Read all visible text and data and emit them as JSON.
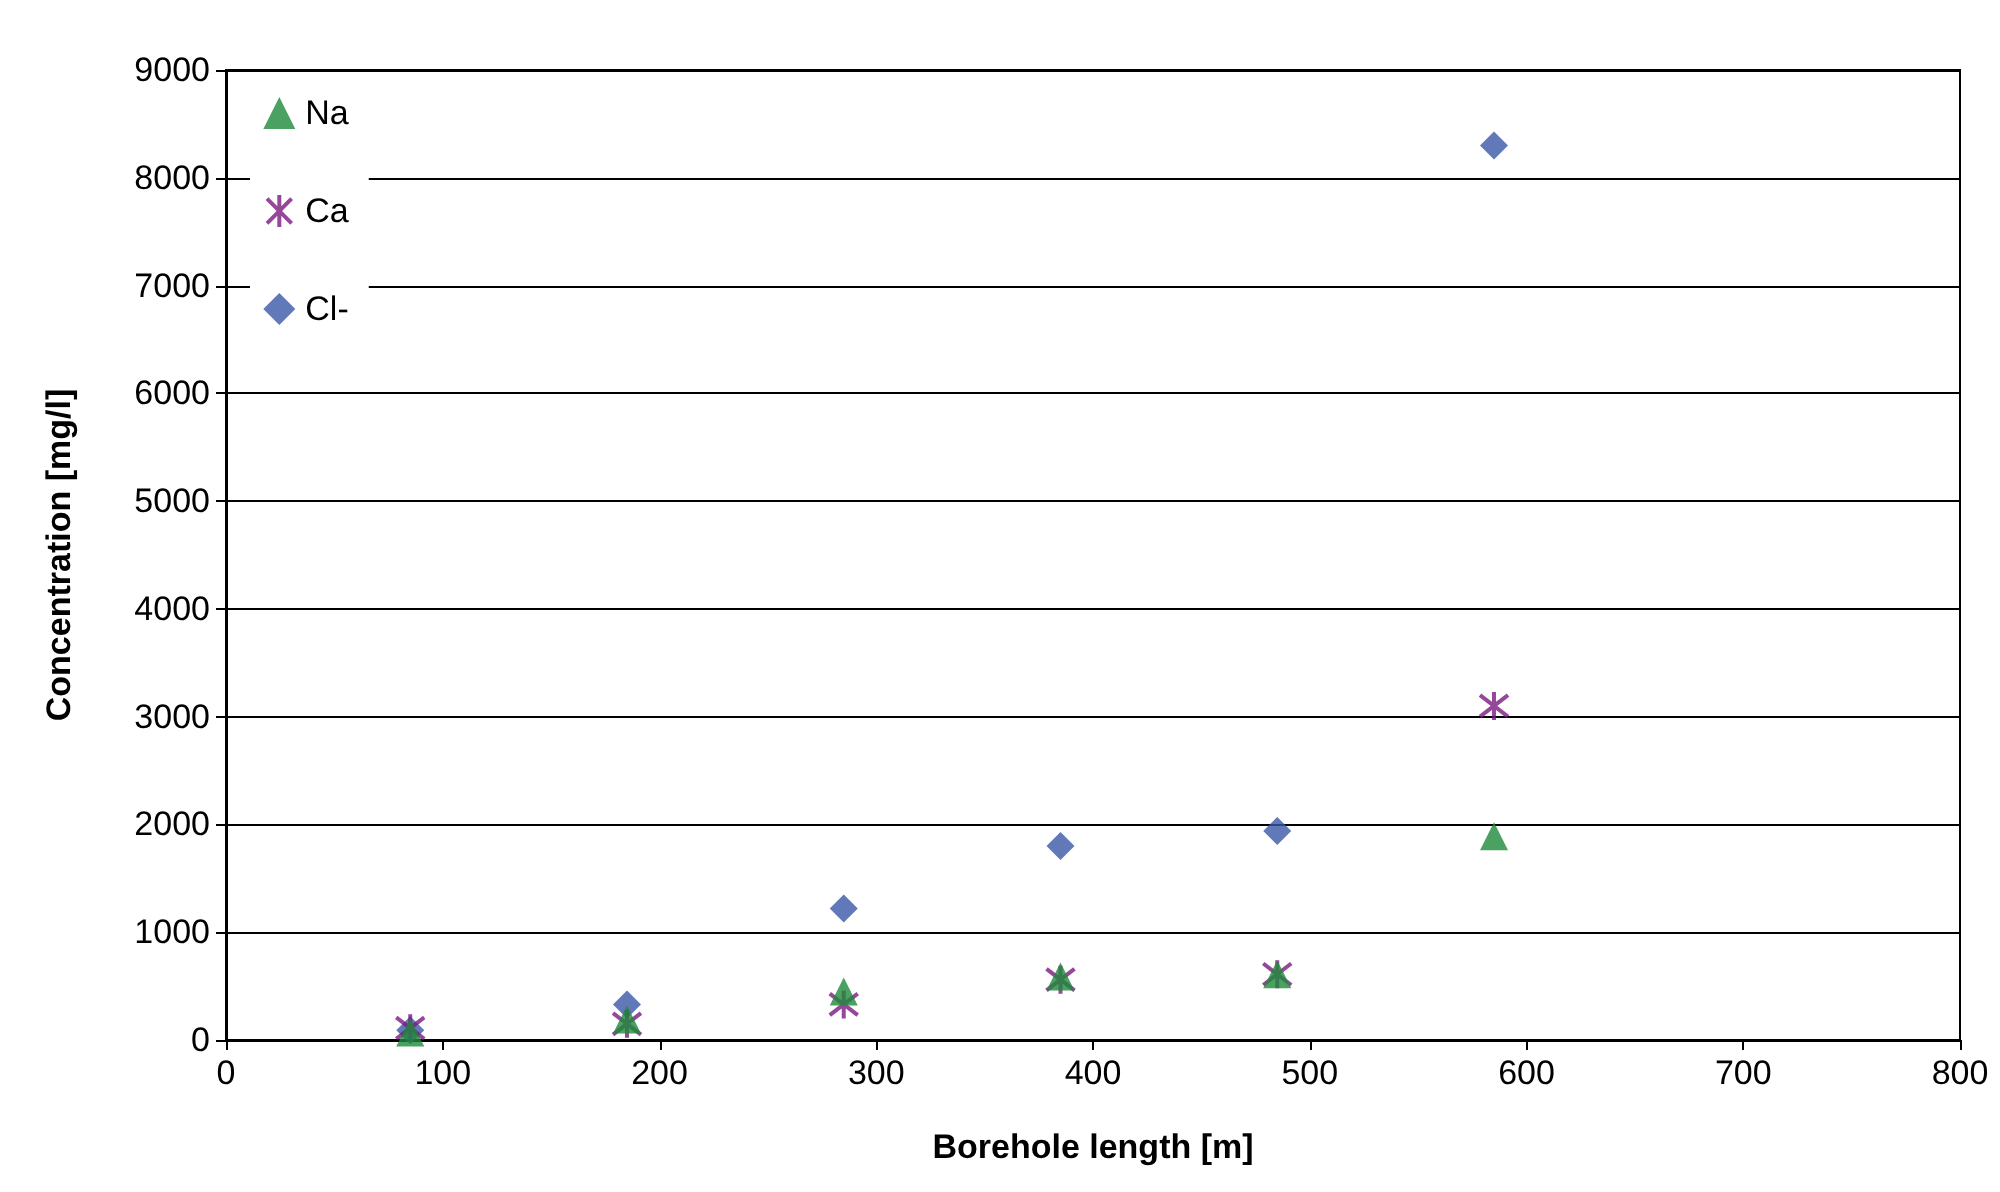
{
  "chart_data": {
    "type": "scatter",
    "xlabel": "Borehole length [m]",
    "ylabel": "Concentration [mg/l]",
    "x": [
      85,
      185,
      285,
      385,
      485,
      585
    ],
    "series": [
      {
        "name": "Na",
        "color": "#1e8a3a",
        "marker": "triangle",
        "values": [
          70,
          190,
          450,
          590,
          610,
          1890
        ]
      },
      {
        "name": "Ca",
        "color": "#7b1a7f",
        "marker": "cross",
        "values": [
          110,
          150,
          330,
          560,
          610,
          3100
        ]
      },
      {
        "name": "Cl-",
        "color": "#3a56a8",
        "marker": "diamond",
        "values": [
          90,
          330,
          1220,
          1800,
          1940,
          8300
        ]
      }
    ],
    "xlim": [
      0,
      800
    ],
    "xticks": [
      0,
      100,
      200,
      300,
      400,
      500,
      600,
      700,
      800
    ],
    "ylim": [
      0,
      9000
    ],
    "yticks": [
      0,
      1000,
      2000,
      3000,
      4000,
      5000,
      6000,
      7000,
      8000,
      9000
    ],
    "grid": "y",
    "legend": "top left"
  }
}
